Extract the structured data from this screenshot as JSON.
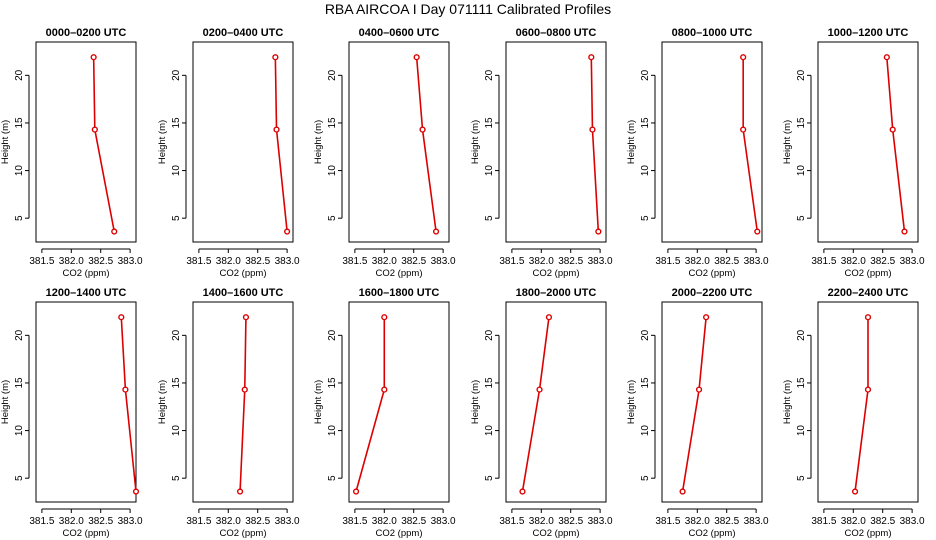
{
  "figure": {
    "title": "RBA AIRCOA I  Day 071111  Calibrated Profiles",
    "line_color": "#dd0000",
    "axis_color": "#000000"
  },
  "chart_data": [
    {
      "type": "line",
      "title": "0000–0200 UTC",
      "xlabel": "CO2 (ppm)",
      "ylabel": "Height (m)",
      "xlim": [
        381.4,
        383.1
      ],
      "ylim": [
        2.5,
        23.5
      ],
      "xticks": [
        "381.5",
        "382.0",
        "382.5",
        "383.0"
      ],
      "yticks": [
        "5",
        "10",
        "15",
        "20"
      ],
      "series": [
        {
          "x": [
            382.38,
            382.4,
            382.73
          ],
          "y": [
            21.9,
            14.3,
            3.6
          ]
        }
      ]
    },
    {
      "type": "line",
      "title": "0200–0400 UTC",
      "xlabel": "CO2 (ppm)",
      "ylabel": "Height (m)",
      "xlim": [
        381.4,
        383.1
      ],
      "ylim": [
        2.5,
        23.5
      ],
      "xticks": [
        "381.5",
        "382.0",
        "382.5",
        "383.0"
      ],
      "yticks": [
        "5",
        "10",
        "15",
        "20"
      ],
      "series": [
        {
          "x": [
            382.8,
            382.82,
            383.0
          ],
          "y": [
            21.9,
            14.3,
            3.6
          ]
        }
      ]
    },
    {
      "type": "line",
      "title": "0400–0600 UTC",
      "xlabel": "CO2 (ppm)",
      "ylabel": "Height (m)",
      "xlim": [
        381.4,
        383.1
      ],
      "ylim": [
        2.5,
        23.5
      ],
      "xticks": [
        "381.5",
        "382.0",
        "382.5",
        "383.0"
      ],
      "yticks": [
        "5",
        "10",
        "15",
        "20"
      ],
      "series": [
        {
          "x": [
            382.55,
            382.65,
            382.88
          ],
          "y": [
            21.9,
            14.3,
            3.6
          ]
        }
      ]
    },
    {
      "type": "line",
      "title": "0600–0800 UTC",
      "xlabel": "CO2 (ppm)",
      "ylabel": "Height (m)",
      "xlim": [
        381.4,
        383.1
      ],
      "ylim": [
        2.5,
        23.5
      ],
      "xticks": [
        "381.5",
        "382.0",
        "382.5",
        "383.0"
      ],
      "yticks": [
        "5",
        "10",
        "15",
        "20"
      ],
      "series": [
        {
          "x": [
            382.85,
            382.87,
            382.97
          ],
          "y": [
            21.9,
            14.3,
            3.6
          ]
        }
      ]
    },
    {
      "type": "line",
      "title": "0800–1000 UTC",
      "xlabel": "CO2 (ppm)",
      "ylabel": "Height (m)",
      "xlim": [
        381.4,
        383.1
      ],
      "ylim": [
        2.5,
        23.5
      ],
      "xticks": [
        "381.5",
        "382.0",
        "382.5",
        "383.0"
      ],
      "yticks": [
        "5",
        "10",
        "15",
        "20"
      ],
      "series": [
        {
          "x": [
            382.78,
            382.78,
            383.02
          ],
          "y": [
            21.9,
            14.3,
            3.6
          ]
        }
      ]
    },
    {
      "type": "line",
      "title": "1000–1200 UTC",
      "xlabel": "CO2 (ppm)",
      "ylabel": "Height (m)",
      "xlim": [
        381.4,
        383.1
      ],
      "ylim": [
        2.5,
        23.5
      ],
      "xticks": [
        "381.5",
        "382.0",
        "382.5",
        "383.0"
      ],
      "yticks": [
        "5",
        "10",
        "15",
        "20"
      ],
      "series": [
        {
          "x": [
            382.57,
            382.67,
            382.87
          ],
          "y": [
            21.9,
            14.3,
            3.6
          ]
        }
      ]
    },
    {
      "type": "line",
      "title": "1200–1400 UTC",
      "xlabel": "CO2 (ppm)",
      "ylabel": "Height (m)",
      "xlim": [
        381.4,
        383.1
      ],
      "ylim": [
        2.5,
        23.5
      ],
      "xticks": [
        "381.5",
        "382.0",
        "382.5",
        "383.0"
      ],
      "yticks": [
        "5",
        "10",
        "15",
        "20"
      ],
      "series": [
        {
          "x": [
            382.85,
            382.92,
            383.1
          ],
          "y": [
            21.9,
            14.3,
            3.6
          ]
        }
      ]
    },
    {
      "type": "line",
      "title": "1400–1600 UTC",
      "xlabel": "CO2 (ppm)",
      "ylabel": "Height (m)",
      "xlim": [
        381.4,
        383.1
      ],
      "ylim": [
        2.5,
        23.5
      ],
      "xticks": [
        "381.5",
        "382.0",
        "382.5",
        "383.0"
      ],
      "yticks": [
        "5",
        "10",
        "15",
        "20"
      ],
      "series": [
        {
          "x": [
            382.3,
            382.28,
            382.2
          ],
          "y": [
            21.9,
            14.3,
            3.6
          ]
        }
      ]
    },
    {
      "type": "line",
      "title": "1600–1800 UTC",
      "xlabel": "CO2 (ppm)",
      "ylabel": "Height (m)",
      "xlim": [
        381.4,
        383.1
      ],
      "ylim": [
        2.5,
        23.5
      ],
      "xticks": [
        "381.5",
        "382.0",
        "382.5",
        "383.0"
      ],
      "yticks": [
        "5",
        "10",
        "15",
        "20"
      ],
      "series": [
        {
          "x": [
            382.0,
            382.0,
            381.52
          ],
          "y": [
            21.9,
            14.3,
            3.6
          ]
        }
      ]
    },
    {
      "type": "line",
      "title": "1800–2000 UTC",
      "xlabel": "CO2 (ppm)",
      "ylabel": "Height (m)",
      "xlim": [
        381.4,
        383.1
      ],
      "ylim": [
        2.5,
        23.5
      ],
      "xticks": [
        "381.5",
        "382.0",
        "382.5",
        "383.0"
      ],
      "yticks": [
        "5",
        "10",
        "15",
        "20"
      ],
      "series": [
        {
          "x": [
            382.13,
            381.97,
            381.68
          ],
          "y": [
            21.9,
            14.3,
            3.6
          ]
        }
      ]
    },
    {
      "type": "line",
      "title": "2000–2200 UTC",
      "xlabel": "CO2 (ppm)",
      "ylabel": "Height (m)",
      "xlim": [
        381.4,
        383.1
      ],
      "ylim": [
        2.5,
        23.5
      ],
      "xticks": [
        "381.5",
        "382.0",
        "382.5",
        "383.0"
      ],
      "yticks": [
        "5",
        "10",
        "15",
        "20"
      ],
      "series": [
        {
          "x": [
            382.15,
            382.03,
            381.75
          ],
          "y": [
            21.9,
            14.3,
            3.6
          ]
        }
      ]
    },
    {
      "type": "line",
      "title": "2200–2400 UTC",
      "xlabel": "CO2 (ppm)",
      "ylabel": "Height (m)",
      "xlim": [
        381.4,
        383.1
      ],
      "ylim": [
        2.5,
        23.5
      ],
      "xticks": [
        "381.5",
        "382.0",
        "382.5",
        "383.0"
      ],
      "yticks": [
        "5",
        "10",
        "15",
        "20"
      ],
      "series": [
        {
          "x": [
            382.25,
            382.25,
            382.03
          ],
          "y": [
            21.9,
            14.3,
            3.6
          ]
        }
      ]
    }
  ]
}
